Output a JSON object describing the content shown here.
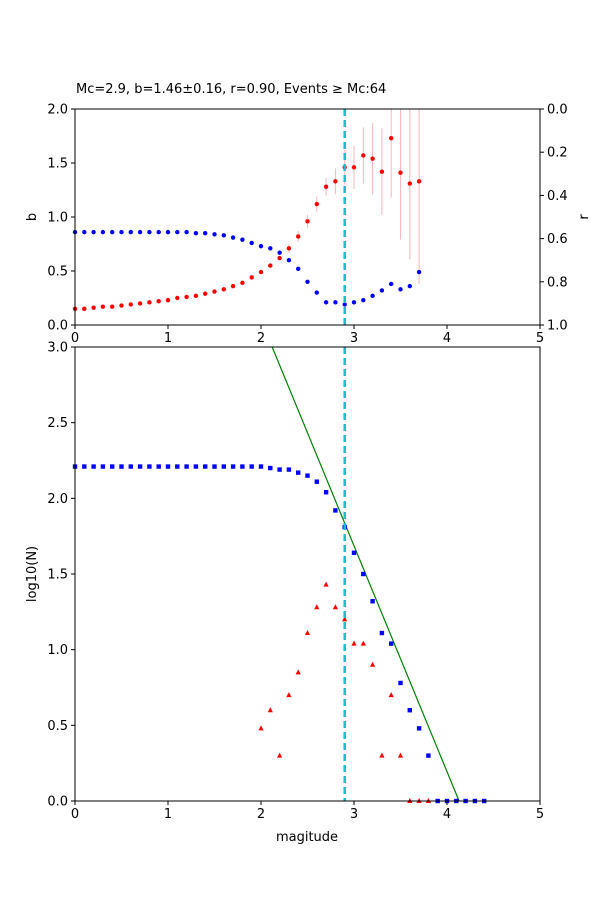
{
  "chart_data": [
    {
      "type": "scatter",
      "title": "Mc=2.9, b=1.46±0.16, r=0.90, Events ≥ Mc:64",
      "xlabel": "",
      "ylabel": "b",
      "ylabel_right": "r",
      "xlim": [
        0,
        5
      ],
      "ylim": [
        0,
        2
      ],
      "ylim_right": [
        1,
        0
      ],
      "xticks": [
        "0",
        "1",
        "2",
        "3",
        "4",
        "5"
      ],
      "yticks": [
        "0.0",
        "0.5",
        "1.0",
        "1.5",
        "2.0"
      ],
      "yticks_right": [
        "0.0",
        "0.2",
        "0.4",
        "0.6",
        "0.8",
        "1.0"
      ],
      "mc_line": 2.9,
      "grid": false,
      "series": [
        {
          "name": "b",
          "axis": "left",
          "color": "#ff0000",
          "marker": "circle",
          "x": [
            0.0,
            0.1,
            0.2,
            0.3,
            0.4,
            0.5,
            0.6,
            0.7,
            0.8,
            0.9,
            1.0,
            1.1,
            1.2,
            1.3,
            1.4,
            1.5,
            1.6,
            1.7,
            1.8,
            1.9,
            2.0,
            2.1,
            2.2,
            2.3,
            2.4,
            2.5,
            2.6,
            2.7,
            2.8,
            2.9,
            3.0,
            3.1,
            3.2,
            3.3,
            3.4,
            3.5,
            3.6,
            3.7
          ],
          "y": [
            0.15,
            0.15,
            0.16,
            0.17,
            0.17,
            0.18,
            0.19,
            0.2,
            0.21,
            0.22,
            0.23,
            0.25,
            0.26,
            0.27,
            0.29,
            0.31,
            0.33,
            0.36,
            0.39,
            0.44,
            0.49,
            0.55,
            0.62,
            0.71,
            0.82,
            0.96,
            1.12,
            1.28,
            1.33,
            1.46,
            1.46,
            1.57,
            1.54,
            1.42,
            1.73,
            1.41,
            1.31,
            1.33
          ],
          "err": [
            0,
            0,
            0,
            0,
            0,
            0,
            0,
            0,
            0,
            0,
            0,
            0,
            0,
            0,
            0,
            0,
            0,
            0,
            0,
            0,
            0,
            0,
            0,
            0.04,
            0.05,
            0.06,
            0.07,
            0.08,
            0.12,
            0.16,
            0.2,
            0.26,
            0.33,
            0.4,
            0.55,
            0.62,
            0.7,
            0.95
          ]
        },
        {
          "name": "r",
          "axis": "right",
          "color": "#0000ff",
          "marker": "circle",
          "x": [
            0.0,
            0.1,
            0.2,
            0.3,
            0.4,
            0.5,
            0.6,
            0.7,
            0.8,
            0.9,
            1.0,
            1.1,
            1.2,
            1.3,
            1.4,
            1.5,
            1.6,
            1.7,
            1.8,
            1.9,
            2.0,
            2.1,
            2.2,
            2.3,
            2.4,
            2.5,
            2.6,
            2.7,
            2.8,
            2.9,
            3.0,
            3.1,
            3.2,
            3.3,
            3.4,
            3.5,
            3.6,
            3.7
          ],
          "y": [
            0.57,
            0.57,
            0.57,
            0.57,
            0.57,
            0.57,
            0.57,
            0.57,
            0.57,
            0.57,
            0.57,
            0.57,
            0.57,
            0.575,
            0.575,
            0.58,
            0.585,
            0.595,
            0.605,
            0.62,
            0.635,
            0.645,
            0.665,
            0.7,
            0.74,
            0.8,
            0.85,
            0.895,
            0.895,
            0.905,
            0.895,
            0.885,
            0.865,
            0.84,
            0.81,
            0.835,
            0.82,
            0.755
          ]
        }
      ]
    },
    {
      "type": "scatter",
      "title": "",
      "xlabel": "magitude",
      "ylabel": "log10(N)",
      "xlim": [
        0,
        5
      ],
      "ylim": [
        0,
        3
      ],
      "xticks": [
        "0",
        "1",
        "2",
        "3",
        "4",
        "5"
      ],
      "yticks": [
        "0.0",
        "0.5",
        "1.0",
        "1.5",
        "2.0",
        "2.5",
        "3.0"
      ],
      "mc_line": 2.9,
      "grid": false,
      "fit_line": {
        "color": "#008000",
        "x": [
          2.12,
          4.13
        ],
        "y": [
          3.0,
          0.0
        ]
      },
      "series": [
        {
          "name": "cumulative",
          "color": "#0000ff",
          "marker": "square",
          "x": [
            0.0,
            0.1,
            0.2,
            0.3,
            0.4,
            0.5,
            0.6,
            0.7,
            0.8,
            0.9,
            1.0,
            1.1,
            1.2,
            1.3,
            1.4,
            1.5,
            1.6,
            1.7,
            1.8,
            1.9,
            2.0,
            2.1,
            2.2,
            2.3,
            2.4,
            2.5,
            2.6,
            2.7,
            2.8,
            2.9,
            3.0,
            3.1,
            3.2,
            3.3,
            3.4,
            3.5,
            3.6,
            3.7,
            3.8,
            3.9,
            4.0,
            4.1,
            4.2,
            4.3,
            4.4
          ],
          "y": [
            2.21,
            2.21,
            2.21,
            2.21,
            2.21,
            2.21,
            2.21,
            2.21,
            2.21,
            2.21,
            2.21,
            2.21,
            2.21,
            2.21,
            2.21,
            2.21,
            2.21,
            2.21,
            2.21,
            2.21,
            2.21,
            2.2,
            2.19,
            2.19,
            2.17,
            2.15,
            2.11,
            2.04,
            1.92,
            1.81,
            1.64,
            1.5,
            1.32,
            1.11,
            1.04,
            0.78,
            0.6,
            0.48,
            0.3,
            0.0,
            0.0,
            0.0,
            0.0,
            0.0,
            0.0
          ]
        },
        {
          "name": "non-cumulative",
          "color": "#ff0000",
          "marker": "triangle",
          "x": [
            2.0,
            2.1,
            2.2,
            2.3,
            2.4,
            2.5,
            2.6,
            2.7,
            2.8,
            2.9,
            3.0,
            3.1,
            3.2,
            3.3,
            3.4,
            3.5,
            3.6,
            3.7,
            3.8
          ],
          "y": [
            0.48,
            0.6,
            0.3,
            0.7,
            0.85,
            1.11,
            1.28,
            1.43,
            1.28,
            1.2,
            1.04,
            1.04,
            0.9,
            0.3,
            0.7,
            0.3,
            0.0,
            0.0,
            0.0
          ]
        }
      ]
    }
  ]
}
